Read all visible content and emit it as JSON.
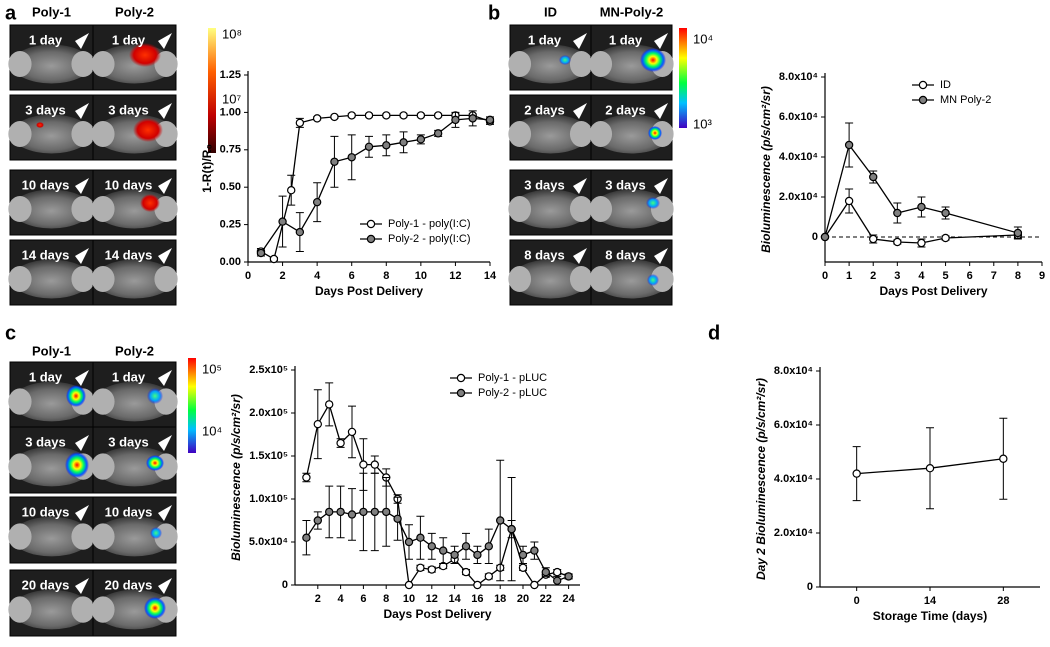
{
  "chart_data": [
    {
      "type": "line",
      "panel_label": "a",
      "xlabel": "Days Post Delivery",
      "ylabel": "1-R(t)/R₀",
      "xlim": [
        0,
        14
      ],
      "xticks": [
        0,
        2,
        4,
        6,
        8,
        10,
        12,
        14
      ],
      "ylim": [
        0,
        1.25
      ],
      "yticks": [
        {
          "value": 0,
          "label": "0.00"
        },
        0.25,
        {
          "value": 0.5,
          "label": "0.50"
        },
        0.75,
        {
          "value": 1,
          "label": "1.00"
        },
        1.25
      ],
      "legend": "lower right",
      "series": [
        {
          "name": "Poly-1 - poly(I:C)",
          "color": "#ffffff",
          "x": [
            0.75,
            1.5,
            2.5,
            3,
            4,
            5,
            6,
            7,
            8,
            9,
            10,
            11,
            12,
            13,
            14
          ],
          "values": [
            0.07,
            0.02,
            0.48,
            0.93,
            0.96,
            0.97,
            0.98,
            0.98,
            0.98,
            0.98,
            0.98,
            0.98,
            0.98,
            0.98,
            0.94
          ],
          "errors": [
            0.02,
            0.01,
            0.1,
            0.03,
            0.01,
            0.01,
            0.01,
            0.01,
            0.01,
            0.01,
            0.01,
            0.01,
            0.01,
            0.01,
            0.02
          ]
        },
        {
          "name": "Poly-2 - poly(I:C)",
          "color": "#808080",
          "x": [
            0.75,
            2,
            3,
            4,
            5,
            6,
            7,
            8,
            9,
            10,
            11,
            12,
            13,
            14
          ],
          "values": [
            0.06,
            0.27,
            0.2,
            0.4,
            0.67,
            0.7,
            0.77,
            0.78,
            0.8,
            0.82,
            0.86,
            0.95,
            0.96,
            0.95
          ],
          "errors": [
            0.02,
            0.17,
            0.13,
            0.13,
            0.17,
            0.15,
            0.07,
            0.07,
            0.07,
            0.03,
            0.02,
            0.05,
            0.05,
            0.02
          ]
        }
      ]
    },
    {
      "type": "line",
      "panel_label": "b",
      "xlabel": "Days Post Delivery",
      "ylabel": "Bioluminescence (p/s/cm²/sr)",
      "xlim": [
        0,
        9
      ],
      "xticks": [
        0,
        1,
        2,
        3,
        4,
        5,
        6,
        7,
        8,
        9
      ],
      "ylim": [
        -12500,
        80000
      ],
      "yticks": [
        0,
        {
          "value": 20000,
          "label": "2.0x10⁴"
        },
        {
          "value": 40000,
          "label": "4.0x10⁴"
        },
        {
          "value": 60000,
          "label": "6.0x10⁴"
        },
        {
          "value": 80000,
          "label": "8.0x10⁴"
        }
      ],
      "reference_line": {
        "value": 0,
        "style": "dashed"
      },
      "legend": "upper right",
      "series": [
        {
          "name": "ID",
          "color": "#ffffff",
          "x": [
            0,
            1,
            2,
            3,
            4,
            5,
            8
          ],
          "values": [
            0,
            18000,
            -1000,
            -2500,
            -3000,
            -500,
            1000
          ],
          "errors": [
            0,
            6000,
            2000,
            1000,
            2000,
            1000,
            1500
          ]
        },
        {
          "name": "MN Poly-2",
          "color": "#808080",
          "x": [
            0,
            1,
            2,
            3,
            4,
            5,
            8
          ],
          "values": [
            0,
            46000,
            30000,
            12000,
            15000,
            12000,
            2000
          ],
          "errors": [
            0,
            11000,
            3000,
            5000,
            5000,
            3000,
            3000
          ]
        }
      ]
    },
    {
      "type": "line",
      "panel_label": "c",
      "xlabel": "Days Post Delivery",
      "ylabel": "Bioluminescence (p/s/cm²/sr)",
      "xlim": [
        0,
        25
      ],
      "xticks": [
        2,
        4,
        6,
        8,
        10,
        12,
        14,
        16,
        18,
        20,
        22,
        24
      ],
      "ylim": [
        0,
        250000
      ],
      "yticks": [
        0,
        {
          "value": 50000,
          "label": "5.0x10⁴"
        },
        {
          "value": 100000,
          "label": "1.0x10⁵"
        },
        {
          "value": 150000,
          "label": "1.5x10⁵"
        },
        {
          "value": 200000,
          "label": "2.0x10⁵"
        },
        {
          "value": 250000,
          "label": "2.5x10⁵"
        }
      ],
      "legend": "upper right",
      "series": [
        {
          "name": "Poly-1 - pLUC",
          "color": "#ffffff",
          "x": [
            1,
            2,
            3,
            4,
            5,
            6,
            7,
            8,
            9,
            10,
            11,
            12,
            13,
            14,
            15,
            16,
            17,
            18,
            19,
            20,
            21,
            22,
            23,
            24
          ],
          "values": [
            125000,
            187000,
            210000,
            165000,
            178000,
            140000,
            140000,
            125000,
            100000,
            0,
            20000,
            18000,
            22000,
            30000,
            15000,
            0,
            10000,
            20000,
            65000,
            20000,
            0,
            12000,
            15000,
            10000
          ],
          "errors": [
            5000,
            40000,
            25000,
            5000,
            30000,
            30000,
            10000,
            10000,
            5000,
            0,
            3000,
            3000,
            3000,
            5000,
            3000,
            0,
            3000,
            3000,
            10000,
            3000,
            0,
            3000,
            3000,
            2000
          ]
        },
        {
          "name": "Poly-2 - pLUC",
          "color": "#808080",
          "x": [
            1,
            2,
            3,
            4,
            5,
            6,
            7,
            8,
            9,
            10,
            11,
            12,
            13,
            14,
            15,
            16,
            17,
            18,
            19,
            20,
            21,
            22,
            23,
            24
          ],
          "values": [
            55000,
            75000,
            85000,
            85000,
            82000,
            85000,
            85000,
            85000,
            77000,
            50000,
            55000,
            45000,
            40000,
            35000,
            45000,
            35000,
            45000,
            75000,
            65000,
            35000,
            40000,
            15000,
            5000,
            10000
          ],
          "errors": [
            20000,
            10000,
            30000,
            30000,
            30000,
            45000,
            45000,
            40000,
            25000,
            20000,
            25000,
            15000,
            15000,
            10000,
            15000,
            10000,
            20000,
            70000,
            60000,
            10000,
            10000,
            5000,
            5000,
            3000
          ]
        }
      ]
    },
    {
      "type": "line",
      "panel_label": "d",
      "xlabel": "Storage Time (days)",
      "ylabel": "Day 2 Bioluminescence (p/s/cm²/sr)",
      "categories": [
        "0",
        "14",
        "28"
      ],
      "ylim": [
        0,
        80000
      ],
      "yticks": [
        0,
        {
          "value": 20000,
          "label": "2.0x10⁴"
        },
        {
          "value": 40000,
          "label": "4.0x10⁴"
        },
        {
          "value": 60000,
          "label": "6.0x10⁴"
        },
        {
          "value": 80000,
          "label": "8.0x10⁴"
        }
      ],
      "series": [
        {
          "name": null,
          "color": "#ffffff",
          "values": [
            42000,
            44000,
            47500
          ],
          "errors": [
            10000,
            15000,
            15000
          ]
        }
      ]
    }
  ],
  "image_panels": [
    {
      "columns": [
        "Poly-1",
        "Poly-2"
      ],
      "rows": [
        "1 day",
        "3 days",
        "10 days",
        "14 days"
      ],
      "colorbar": [
        "10⁸",
        "10⁷"
      ]
    },
    {
      "columns": [
        "ID",
        "MN-Poly-2"
      ],
      "rows": [
        "1 day",
        "2 days",
        "3 days",
        "8 days"
      ],
      "colorbar": [
        "10⁴",
        "10³"
      ]
    },
    {
      "columns": [
        "Poly-1",
        "Poly-2"
      ],
      "rows": [
        "1 day",
        "3 days",
        "10 days",
        "20 days"
      ],
      "colorbar": [
        "10⁵",
        "10⁴"
      ]
    }
  ]
}
